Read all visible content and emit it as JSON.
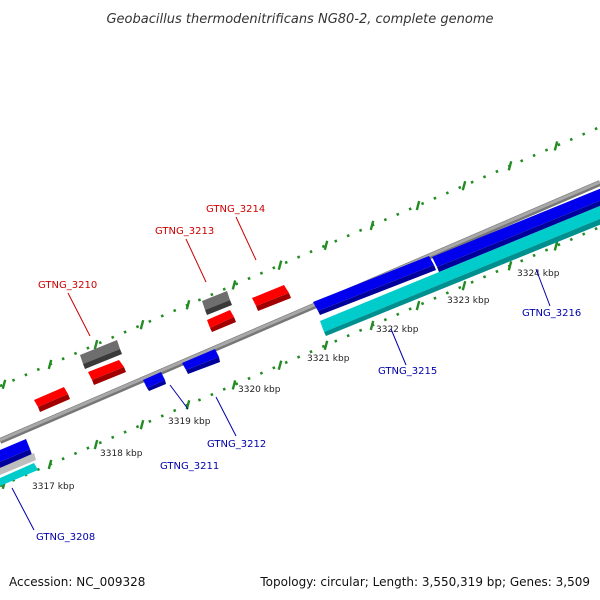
{
  "title": "Geobacillus thermodenitrificans NG80-2, complete genome",
  "footer": {
    "accession": "Accession: NC_009328",
    "topology": "Topology: circular; Length: 3,550,319 bp; Genes: 3,509"
  },
  "colors": {
    "forward": "#ff0000",
    "reverse": "#0000ff",
    "rna": "#6e6e6e",
    "cds_outer": "#00cccc",
    "backbone": "#909090",
    "ticks": "#228b22",
    "label_forward": "#cc0000",
    "label_reverse": "#0000aa"
  },
  "diagram_data": {
    "type": "genome-map",
    "axis_unit": "kbp",
    "tick_labels": [
      "3317 kbp",
      "3318 kbp",
      "3319 kbp",
      "3320 kbp",
      "3321 kbp",
      "3322 kbp",
      "3323 kbp",
      "3324 kbp"
    ],
    "genes": [
      {
        "label": "GTNG_3208",
        "strand": "reverse"
      },
      {
        "label": "GTNG_3210",
        "strand": "forward"
      },
      {
        "label": "GTNG_3211",
        "strand": "reverse"
      },
      {
        "label": "GTNG_3212",
        "strand": "reverse"
      },
      {
        "label": "GTNG_3213",
        "strand": "forward"
      },
      {
        "label": "GTNG_3214",
        "strand": "forward"
      },
      {
        "label": "GTNG_3215",
        "strand": "reverse"
      },
      {
        "label": "GTNG_3216",
        "strand": "reverse"
      }
    ]
  }
}
